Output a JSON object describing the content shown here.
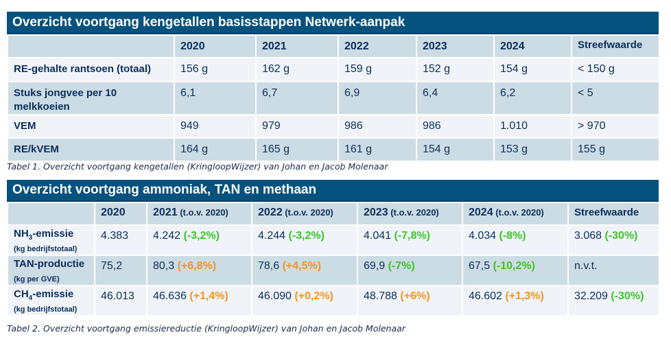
{
  "table1": {
    "title": "Overzicht voortgang kengetallen basisstappen Netwerk-aanpak",
    "columns": [
      "",
      "2020",
      "2021",
      "2022",
      "2023",
      "2024",
      "Streefwaarde"
    ],
    "rows": [
      {
        "label": "RE-gehalte rantsoen (totaal)",
        "values": [
          "156 g",
          "162 g",
          "159 g",
          "152 g",
          "154 g",
          "< 150 g"
        ]
      },
      {
        "label": "Stuks jongvee per 10 melkkoeien",
        "values": [
          "6,1",
          "6,7",
          "6,9",
          "6,4",
          "6,2",
          "< 5"
        ]
      },
      {
        "label": "VEM",
        "values": [
          "949",
          "979",
          "986",
          "986",
          "1.010",
          "> 970"
        ]
      },
      {
        "label": "RE/kVEM",
        "values": [
          "164 g",
          "165 g",
          "161 g",
          "154 g",
          "153 g",
          "155 g"
        ]
      }
    ],
    "caption": "Tabel 1. Overzicht voortgang kengetallen (KringloopWijzer) van Johan en Jacob Molenaar"
  },
  "table2": {
    "title": "Overzicht voortgang ammoniak, TAN en methaan",
    "columns": [
      {
        "year": "",
        "sub": ""
      },
      {
        "year": "2020",
        "sub": ""
      },
      {
        "year": "2021",
        "sub": " (t.o.v. 2020)"
      },
      {
        "year": "2022",
        "sub": " (t.o.v. 2020)"
      },
      {
        "year": "2023",
        "sub": " (t.o.v. 2020)"
      },
      {
        "year": "2024",
        "sub": " (t.o.v. 2020)"
      },
      {
        "year": "Streefwaarde",
        "sub": ""
      }
    ],
    "rows": [
      {
        "label_prefix": "NH",
        "label_sub": "3",
        "label_suffix": "-emissie",
        "unit": "(kg bedrijfstotaal)",
        "values": [
          {
            "value": "4.383",
            "change": ""
          },
          {
            "value": "4.242 ",
            "change": "(-3,2%)",
            "trend": "down"
          },
          {
            "value": "4.244 ",
            "change": "(-3,2%)",
            "trend": "down"
          },
          {
            "value": "4.041 ",
            "change": "(-7,8%)",
            "trend": "down"
          },
          {
            "value": "4.034 ",
            "change": "(-8%)",
            "trend": "down"
          },
          {
            "value": "3.068 ",
            "change": "(-30%)",
            "trend": "down"
          }
        ]
      },
      {
        "label_prefix": "TAN-productie",
        "label_sub": "",
        "label_suffix": "",
        "unit": "(kg per GVE)",
        "values": [
          {
            "value": "75,2",
            "change": ""
          },
          {
            "value": "80,3 ",
            "change": "(+6,8%)",
            "trend": "up"
          },
          {
            "value": "78,6 ",
            "change": "(+4,5%)",
            "trend": "up"
          },
          {
            "value": "69,9 ",
            "change": "(-7%)",
            "trend": "down"
          },
          {
            "value": "67,5 ",
            "change": "(-10,2%)",
            "trend": "down"
          },
          {
            "value": "n.v.t.",
            "change": ""
          }
        ]
      },
      {
        "label_prefix": "CH",
        "label_sub": "4",
        "label_suffix": "-emissie",
        "unit": "(kg bedrijfstotaal)",
        "values": [
          {
            "value": "46.013",
            "change": ""
          },
          {
            "value": "46.636 ",
            "change": "(+1,4%)",
            "trend": "up"
          },
          {
            "value": "46.090 ",
            "change": "(+0,2%)",
            "trend": "up"
          },
          {
            "value": "48.788 ",
            "change": "(+6%)",
            "trend": "up"
          },
          {
            "value": "46.602 ",
            "change": "(+1,3%)",
            "trend": "up"
          },
          {
            "value": "32.209 ",
            "change": "(-30%)",
            "trend": "down"
          }
        ]
      }
    ],
    "caption": "Tabel 2. Overzicht voortgang emissiereductie (KringloopWijzer) van Johan en Jacob Molenaar"
  },
  "colors": {
    "header_blue": "#05527f",
    "reduction_green": "#3cc42a",
    "increase_orange": "#f7941d",
    "row_dark": "#ccdce4",
    "row_light": "#f0f4f8",
    "text_navy": "#0b2d5c"
  }
}
